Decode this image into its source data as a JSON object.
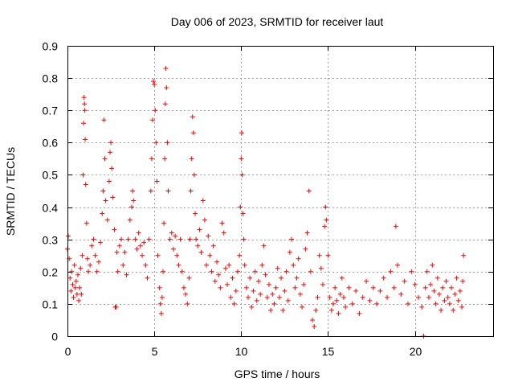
{
  "chart_data": {
    "type": "scatter",
    "title": "Day 006 of 2023, SRMTID for receiver laut",
    "xlabel": "GPS time / hours",
    "ylabel": "SRMTID / TECUs",
    "xlim": [
      0,
      24.5
    ],
    "ylim": [
      0,
      0.9
    ],
    "x_ticks": [
      0,
      5,
      10,
      15,
      20
    ],
    "y_ticks": [
      0,
      0.1,
      0.2,
      0.3,
      0.4,
      0.5,
      0.6,
      0.7,
      0.8,
      0.9
    ],
    "x_tick_labels": [
      "0",
      "5",
      "10",
      "15",
      "20"
    ],
    "y_tick_labels": [
      "0",
      "0.1",
      "0.2",
      "0.3",
      "0.4",
      "0.5",
      "0.6",
      "0.7",
      "0.8",
      "0.9"
    ],
    "grid": true,
    "marker": "plus",
    "color": "#ff0000",
    "series": [
      {
        "name": "SRMTID",
        "points": [
          [
            0.0,
            0.27
          ],
          [
            0.05,
            0.31
          ],
          [
            0.1,
            0.24
          ],
          [
            0.15,
            0.18
          ],
          [
            0.2,
            0.14
          ],
          [
            0.25,
            0.2
          ],
          [
            0.3,
            0.16
          ],
          [
            0.35,
            0.12
          ],
          [
            0.4,
            0.22
          ],
          [
            0.45,
            0.15
          ],
          [
            0.5,
            0.17
          ],
          [
            0.55,
            0.13
          ],
          [
            0.6,
            0.19
          ],
          [
            0.65,
            0.11
          ],
          [
            0.7,
            0.15
          ],
          [
            0.75,
            0.21
          ],
          [
            0.8,
            0.13
          ],
          [
            0.85,
            0.25
          ],
          [
            0.9,
            0.5
          ],
          [
            0.93,
            0.66
          ],
          [
            0.95,
            0.74
          ],
          [
            0.98,
            0.72
          ],
          [
            1.0,
            0.7
          ],
          [
            1.02,
            0.61
          ],
          [
            1.05,
            0.47
          ],
          [
            1.1,
            0.35
          ],
          [
            1.15,
            0.24
          ],
          [
            1.2,
            0.2
          ],
          [
            1.3,
            0.22
          ],
          [
            1.4,
            0.28
          ],
          [
            1.5,
            0.3
          ],
          [
            1.6,
            0.25
          ],
          [
            1.7,
            0.2
          ],
          [
            1.8,
            0.23
          ],
          [
            1.9,
            0.29
          ],
          [
            2.0,
            0.38
          ],
          [
            2.05,
            0.45
          ],
          [
            2.1,
            0.67
          ],
          [
            2.15,
            0.55
          ],
          [
            2.2,
            0.42
          ],
          [
            2.3,
            0.36
          ],
          [
            2.4,
            0.48
          ],
          [
            2.45,
            0.57
          ],
          [
            2.5,
            0.6
          ],
          [
            2.55,
            0.52
          ],
          [
            2.6,
            0.43
          ],
          [
            2.7,
            0.33
          ],
          [
            2.75,
            0.09
          ],
          [
            2.8,
            0.09
          ],
          [
            2.85,
            0.26
          ],
          [
            2.9,
            0.2
          ],
          [
            3.0,
            0.28
          ],
          [
            3.1,
            0.3
          ],
          [
            3.2,
            0.22
          ],
          [
            3.3,
            0.26
          ],
          [
            3.4,
            0.19
          ],
          [
            3.5,
            0.3
          ],
          [
            3.6,
            0.36
          ],
          [
            3.7,
            0.4
          ],
          [
            3.75,
            0.45
          ],
          [
            3.8,
            0.42
          ],
          [
            3.9,
            0.3
          ],
          [
            4.0,
            0.27
          ],
          [
            4.1,
            0.32
          ],
          [
            4.2,
            0.28
          ],
          [
            4.3,
            0.25
          ],
          [
            4.4,
            0.29
          ],
          [
            4.5,
            0.22
          ],
          [
            4.6,
            0.18
          ],
          [
            4.7,
            0.3
          ],
          [
            4.8,
            0.45
          ],
          [
            4.85,
            0.55
          ],
          [
            4.9,
            0.67
          ],
          [
            4.95,
            0.79
          ],
          [
            5.0,
            0.78
          ],
          [
            5.05,
            0.7
          ],
          [
            5.1,
            0.6
          ],
          [
            5.15,
            0.48
          ],
          [
            5.2,
            0.25
          ],
          [
            5.3,
            0.15
          ],
          [
            5.35,
            0.1
          ],
          [
            5.4,
            0.07
          ],
          [
            5.45,
            0.12
          ],
          [
            5.5,
            0.2
          ],
          [
            5.55,
            0.35
          ],
          [
            5.6,
            0.55
          ],
          [
            5.63,
            0.72
          ],
          [
            5.66,
            0.83
          ],
          [
            5.7,
            0.77
          ],
          [
            5.75,
            0.6
          ],
          [
            5.8,
            0.45
          ],
          [
            5.9,
            0.3
          ],
          [
            6.0,
            0.32
          ],
          [
            6.1,
            0.27
          ],
          [
            6.2,
            0.31
          ],
          [
            6.3,
            0.25
          ],
          [
            6.4,
            0.22
          ],
          [
            6.5,
            0.3
          ],
          [
            6.6,
            0.2
          ],
          [
            6.7,
            0.15
          ],
          [
            6.8,
            0.13
          ],
          [
            6.9,
            0.1
          ],
          [
            7.0,
            0.18
          ],
          [
            7.05,
            0.3
          ],
          [
            7.1,
            0.45
          ],
          [
            7.15,
            0.55
          ],
          [
            7.2,
            0.68
          ],
          [
            7.25,
            0.63
          ],
          [
            7.3,
            0.5
          ],
          [
            7.35,
            0.38
          ],
          [
            7.4,
            0.3
          ],
          [
            7.5,
            0.28
          ],
          [
            7.6,
            0.33
          ],
          [
            7.7,
            0.26
          ],
          [
            7.8,
            0.42
          ],
          [
            7.9,
            0.36
          ],
          [
            8.0,
            0.22
          ],
          [
            8.1,
            0.31
          ],
          [
            8.2,
            0.25
          ],
          [
            8.3,
            0.2
          ],
          [
            8.4,
            0.28
          ],
          [
            8.5,
            0.17
          ],
          [
            8.6,
            0.23
          ],
          [
            8.7,
            0.19
          ],
          [
            8.8,
            0.15
          ],
          [
            8.9,
            0.35
          ],
          [
            9.0,
            0.32
          ],
          [
            9.1,
            0.21
          ],
          [
            9.2,
            0.16
          ],
          [
            9.3,
            0.22
          ],
          [
            9.4,
            0.12
          ],
          [
            9.5,
            0.18
          ],
          [
            9.6,
            0.1
          ],
          [
            9.7,
            0.14
          ],
          [
            9.8,
            0.2
          ],
          [
            9.9,
            0.25
          ],
          [
            9.95,
            0.4
          ],
          [
            10.0,
            0.55
          ],
          [
            10.03,
            0.63
          ],
          [
            10.05,
            0.5
          ],
          [
            10.1,
            0.38
          ],
          [
            10.15,
            0.3
          ],
          [
            10.2,
            0.22
          ],
          [
            10.3,
            0.15
          ],
          [
            10.4,
            0.12
          ],
          [
            10.5,
            0.18
          ],
          [
            10.6,
            0.09
          ],
          [
            10.7,
            0.14
          ],
          [
            10.8,
            0.2
          ],
          [
            10.9,
            0.11
          ],
          [
            11.0,
            0.17
          ],
          [
            11.1,
            0.13
          ],
          [
            11.2,
            0.22
          ],
          [
            11.3,
            0.28
          ],
          [
            11.4,
            0.19
          ],
          [
            11.5,
            0.12
          ],
          [
            11.6,
            0.16
          ],
          [
            11.7,
            0.08
          ],
          [
            11.8,
            0.13
          ],
          [
            11.9,
            0.1
          ],
          [
            12.0,
            0.15
          ],
          [
            12.1,
            0.21
          ],
          [
            12.2,
            0.12
          ],
          [
            12.3,
            0.18
          ],
          [
            12.4,
            0.08
          ],
          [
            12.5,
            0.14
          ],
          [
            12.6,
            0.2
          ],
          [
            12.7,
            0.11
          ],
          [
            12.8,
            0.26
          ],
          [
            12.9,
            0.3
          ],
          [
            13.0,
            0.22
          ],
          [
            13.1,
            0.15
          ],
          [
            13.2,
            0.18
          ],
          [
            13.3,
            0.24
          ],
          [
            13.4,
            0.13
          ],
          [
            13.5,
            0.09
          ],
          [
            13.6,
            0.16
          ],
          [
            13.7,
            0.27
          ],
          [
            13.8,
            0.32
          ],
          [
            13.9,
            0.45
          ],
          [
            14.0,
            0.2
          ],
          [
            14.1,
            0.05
          ],
          [
            14.2,
            0.03
          ],
          [
            14.3,
            0.08
          ],
          [
            14.4,
            0.12
          ],
          [
            14.5,
            0.25
          ],
          [
            14.6,
            0.21
          ],
          [
            14.7,
            0.16
          ],
          [
            14.8,
            0.34
          ],
          [
            14.85,
            0.4
          ],
          [
            14.9,
            0.36
          ],
          [
            15.0,
            0.25
          ],
          [
            15.1,
            0.12
          ],
          [
            15.2,
            0.08
          ],
          [
            15.3,
            0.1
          ],
          [
            15.4,
            0.15
          ],
          [
            15.5,
            0.11
          ],
          [
            15.6,
            0.07
          ],
          [
            15.7,
            0.13
          ],
          [
            15.8,
            0.18
          ],
          [
            15.9,
            0.12
          ],
          [
            16.0,
            0.09
          ],
          [
            16.2,
            0.15
          ],
          [
            16.4,
            0.1
          ],
          [
            16.6,
            0.14
          ],
          [
            16.8,
            0.07
          ],
          [
            17.0,
            0.12
          ],
          [
            17.2,
            0.17
          ],
          [
            17.4,
            0.11
          ],
          [
            17.6,
            0.15
          ],
          [
            17.8,
            0.1
          ],
          [
            18.0,
            0.14
          ],
          [
            18.2,
            0.18
          ],
          [
            18.4,
            0.12
          ],
          [
            18.6,
            0.2
          ],
          [
            18.8,
            0.15
          ],
          [
            18.9,
            0.34
          ],
          [
            19.0,
            0.22
          ],
          [
            19.2,
            0.13
          ],
          [
            19.4,
            0.17
          ],
          [
            19.6,
            0.1
          ],
          [
            19.8,
            0.2
          ],
          [
            20.0,
            0.16
          ],
          [
            20.2,
            0.12
          ],
          [
            20.4,
            0.09
          ],
          [
            20.5,
            0.0
          ],
          [
            20.6,
            0.15
          ],
          [
            20.7,
            0.2
          ],
          [
            20.8,
            0.12
          ],
          [
            20.9,
            0.16
          ],
          [
            21.0,
            0.22
          ],
          [
            21.1,
            0.14
          ],
          [
            21.2,
            0.1
          ],
          [
            21.3,
            0.18
          ],
          [
            21.4,
            0.13
          ],
          [
            21.5,
            0.08
          ],
          [
            21.6,
            0.15
          ],
          [
            21.7,
            0.11
          ],
          [
            21.8,
            0.17
          ],
          [
            21.9,
            0.12
          ],
          [
            22.0,
            0.1
          ],
          [
            22.1,
            0.15
          ],
          [
            22.2,
            0.08
          ],
          [
            22.3,
            0.13
          ],
          [
            22.4,
            0.18
          ],
          [
            22.5,
            0.11
          ],
          [
            22.6,
            0.14
          ],
          [
            22.7,
            0.09
          ],
          [
            22.8,
            0.25
          ],
          [
            22.75,
            0.17
          ]
        ]
      }
    ]
  }
}
